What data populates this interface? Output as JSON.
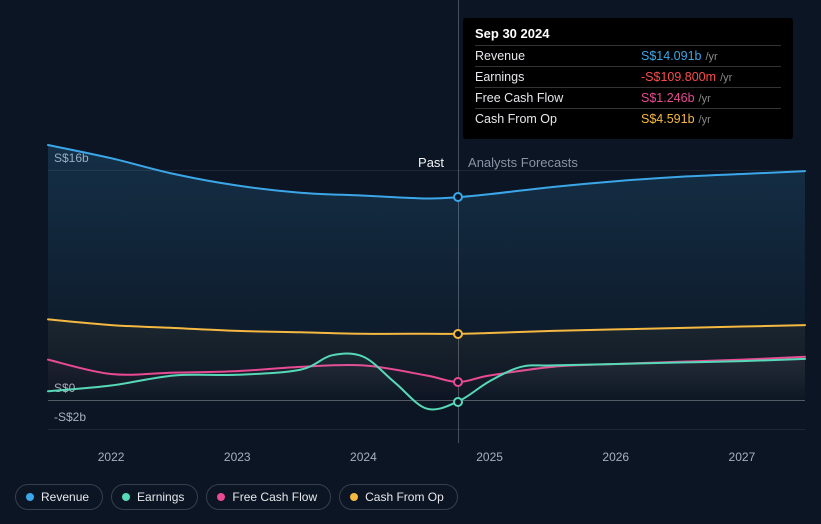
{
  "chart": {
    "background_color": "#0c1523",
    "y_axis": {
      "ticks": [
        {
          "value": 16,
          "label": "S$16b"
        },
        {
          "value": 0,
          "label": "S$0"
        },
        {
          "value": -2,
          "label": "-S$2b"
        }
      ],
      "min": -2.993,
      "max": 17.717
    },
    "x_axis": {
      "min": 2021.5,
      "max": 2027.5,
      "ticks": [
        2022,
        2023,
        2024,
        2025,
        2026,
        2027
      ],
      "split_at": 2024.75
    },
    "labels": {
      "past": "Past",
      "future": "Analysts Forecasts"
    },
    "gridline_color": "rgba(255,255,255,0.08)",
    "zero_line_color": "rgba(255,255,255,0.3)",
    "series": [
      {
        "key": "revenue",
        "label": "Revenue",
        "color": "#3ba7e8",
        "fill": true,
        "fill_opacity": 0.18,
        "line_width": 2,
        "points": [
          [
            2021.5,
            17.717
          ],
          [
            2022.0,
            16.8
          ],
          [
            2022.5,
            15.7
          ],
          [
            2023.0,
            14.9
          ],
          [
            2023.5,
            14.4
          ],
          [
            2024.0,
            14.2
          ],
          [
            2024.5,
            14.0
          ],
          [
            2024.75,
            14.091
          ],
          [
            2025.0,
            14.3
          ],
          [
            2025.5,
            14.8
          ],
          [
            2026.0,
            15.2
          ],
          [
            2026.5,
            15.5
          ],
          [
            2027.0,
            15.7
          ],
          [
            2027.5,
            15.9
          ]
        ]
      },
      {
        "key": "cash_from_op",
        "label": "Cash From Op",
        "color": "#f5b841",
        "fill": true,
        "fill_opacity": 0.06,
        "line_width": 2,
        "points": [
          [
            2021.5,
            5.6
          ],
          [
            2022.0,
            5.2
          ],
          [
            2022.5,
            5.0
          ],
          [
            2023.0,
            4.8
          ],
          [
            2023.5,
            4.7
          ],
          [
            2024.0,
            4.6
          ],
          [
            2024.5,
            4.6
          ],
          [
            2024.75,
            4.591
          ],
          [
            2025.0,
            4.65
          ],
          [
            2025.5,
            4.8
          ],
          [
            2026.0,
            4.9
          ],
          [
            2026.5,
            5.0
          ],
          [
            2027.0,
            5.1
          ],
          [
            2027.5,
            5.2
          ]
        ]
      },
      {
        "key": "free_cash_flow",
        "label": "Free Cash Flow",
        "color": "#e84a93",
        "fill": true,
        "fill_opacity": 0.06,
        "line_width": 2,
        "points": [
          [
            2021.5,
            2.8
          ],
          [
            2022.0,
            1.8
          ],
          [
            2022.5,
            1.9
          ],
          [
            2023.0,
            2.0
          ],
          [
            2023.5,
            2.3
          ],
          [
            2024.0,
            2.4
          ],
          [
            2024.5,
            1.7
          ],
          [
            2024.75,
            1.246
          ],
          [
            2025.0,
            1.7
          ],
          [
            2025.5,
            2.3
          ],
          [
            2026.0,
            2.5
          ],
          [
            2026.5,
            2.65
          ],
          [
            2027.0,
            2.8
          ],
          [
            2027.5,
            3.0
          ]
        ]
      },
      {
        "key": "earnings",
        "label": "Earnings",
        "color": "#57d9b7",
        "fill": true,
        "fill_opacity": 0.06,
        "line_width": 2,
        "points": [
          [
            2021.5,
            0.6
          ],
          [
            2022.0,
            1.0
          ],
          [
            2022.5,
            1.7
          ],
          [
            2023.0,
            1.75
          ],
          [
            2023.5,
            2.1
          ],
          [
            2023.75,
            3.1
          ],
          [
            2024.0,
            3.0
          ],
          [
            2024.25,
            1.2
          ],
          [
            2024.5,
            -0.6
          ],
          [
            2024.75,
            -0.1098
          ],
          [
            2025.0,
            1.3
          ],
          [
            2025.25,
            2.3
          ],
          [
            2025.5,
            2.4
          ],
          [
            2026.0,
            2.5
          ],
          [
            2026.5,
            2.6
          ],
          [
            2027.0,
            2.7
          ],
          [
            2027.5,
            2.85
          ]
        ]
      }
    ],
    "markers_at_x": 2024.75
  },
  "tooltip": {
    "date": "Sep 30 2024",
    "suffix": "/yr",
    "rows": [
      {
        "label": "Revenue",
        "value": "S$14.091b",
        "color": "#3ba7e8"
      },
      {
        "label": "Earnings",
        "value": "-S$109.800m",
        "color": "#fb4c4c"
      },
      {
        "label": "Free Cash Flow",
        "value": "S$1.246b",
        "color": "#e84a93"
      },
      {
        "label": "Cash From Op",
        "value": "S$4.591b",
        "color": "#f5b841"
      }
    ]
  },
  "legend": [
    {
      "key": "revenue",
      "label": "Revenue",
      "color": "#3ba7e8"
    },
    {
      "key": "earnings",
      "label": "Earnings",
      "color": "#57d9b7"
    },
    {
      "key": "free_cash_flow",
      "label": "Free Cash Flow",
      "color": "#e84a93"
    },
    {
      "key": "cash_from_op",
      "label": "Cash From Op",
      "color": "#f5b841"
    }
  ]
}
